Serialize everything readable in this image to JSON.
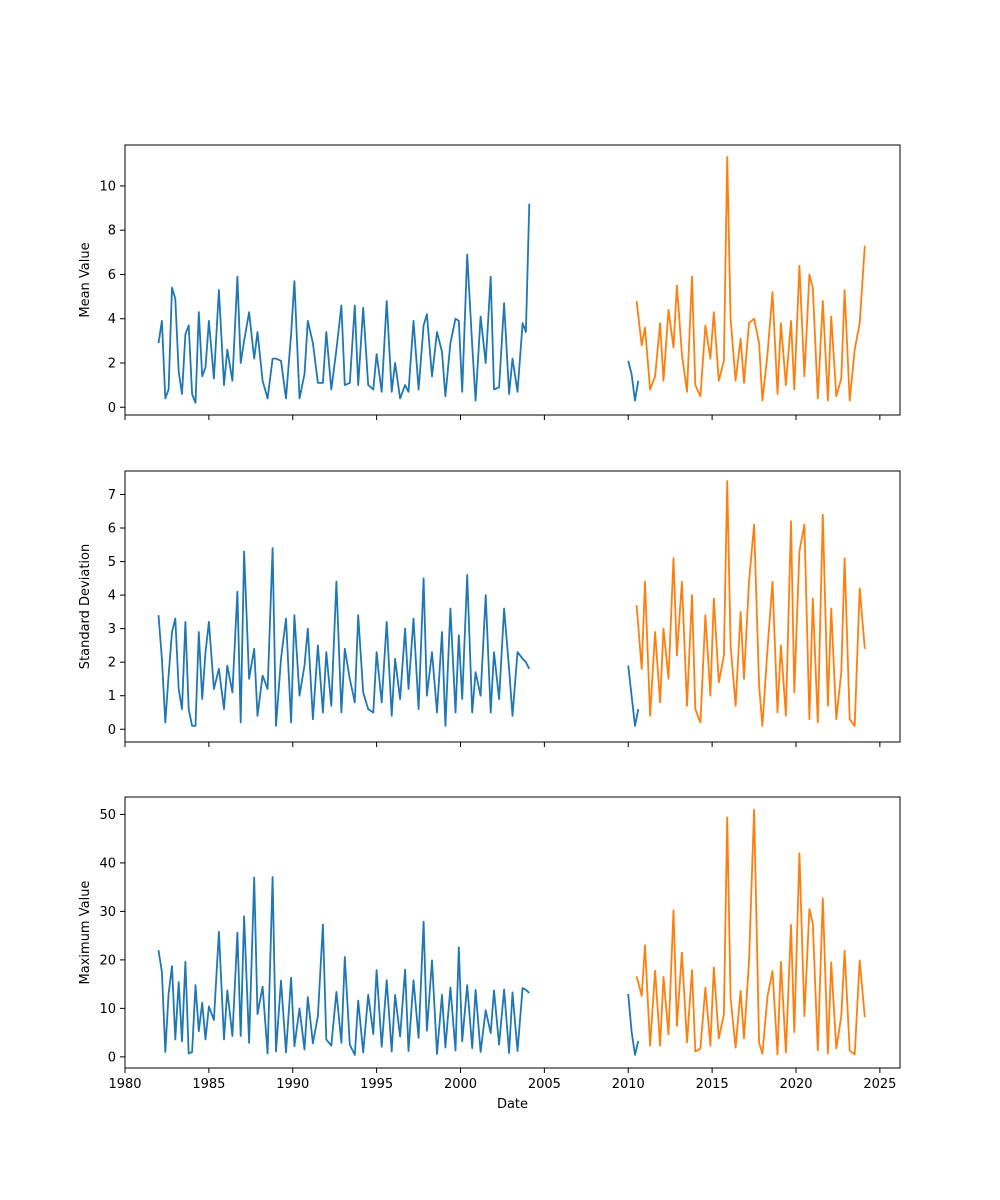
{
  "chart_data": [
    {
      "type": "line",
      "ylabel": "Mean Value",
      "xlabel": "",
      "xlim": [
        1980.0,
        2026.2
      ],
      "ylim": [
        -0.35,
        11.85
      ],
      "xticks": [
        1980,
        1985,
        1990,
        1995,
        2000,
        2005,
        2010,
        2015,
        2020,
        2025
      ],
      "yticks": [
        0,
        2,
        4,
        6,
        8,
        10
      ],
      "show_x_tick_labels": false,
      "series": [
        {
          "color": "#1f77b4",
          "x": [
            1982.0,
            1982.2,
            1982.4,
            1982.6,
            1982.8,
            1983.0,
            1983.2,
            1983.4,
            1983.6,
            1983.8,
            1984.0,
            1984.2,
            1984.4,
            1984.6,
            1984.8,
            1985.0,
            1985.3,
            1985.6,
            1985.9,
            1986.1,
            1986.4,
            1986.7,
            1986.9,
            1987.1,
            1987.4,
            1987.7,
            1987.9,
            1988.2,
            1988.5,
            1988.8,
            1989.0,
            1989.3,
            1989.6,
            1989.9,
            1990.1,
            1990.4,
            1990.7,
            1990.9,
            1991.2,
            1991.5,
            1991.8,
            1992.0,
            1992.3,
            1992.6,
            1992.9,
            1993.1,
            1993.4,
            1993.7,
            1993.9,
            1994.2,
            1994.5,
            1994.8,
            1995.0,
            1995.3,
            1995.6,
            1995.9,
            1996.1,
            1996.4,
            1996.7,
            1996.9,
            1997.2,
            1997.5,
            1997.8,
            1998.0,
            1998.3,
            1998.6,
            1998.9,
            1999.1,
            1999.4,
            1999.7,
            1999.9,
            2000.1,
            2000.4,
            2000.7,
            2000.9,
            2001.2,
            2001.5,
            2001.8,
            2002.0,
            2002.3,
            2002.6,
            2002.9,
            2003.1,
            2003.4,
            2003.7,
            2003.9,
            2004.1
          ],
          "y": [
            2.9,
            3.9,
            0.4,
            0.8,
            5.4,
            4.9,
            1.6,
            0.6,
            3.3,
            3.7,
            0.6,
            0.2,
            4.3,
            1.4,
            1.8,
            3.9,
            1.3,
            5.3,
            1.0,
            2.6,
            1.2,
            5.9,
            2.0,
            3.0,
            4.3,
            2.2,
            3.4,
            1.2,
            0.4,
            2.2,
            2.2,
            2.1,
            0.4,
            3.3,
            5.7,
            0.4,
            1.5,
            3.9,
            2.9,
            1.1,
            1.1,
            3.4,
            0.8,
            2.6,
            4.6,
            1.0,
            1.1,
            4.6,
            1.0,
            4.5,
            1.0,
            0.8,
            2.4,
            0.7,
            4.8,
            0.7,
            2.0,
            0.4,
            1.0,
            0.7,
            3.9,
            0.8,
            3.7,
            4.2,
            1.4,
            3.4,
            2.5,
            0.5,
            2.9,
            4.0,
            3.9,
            0.7,
            6.9,
            2.8,
            0.3,
            4.1,
            2.0,
            5.9,
            0.8,
            0.9,
            4.7,
            0.6,
            2.2,
            0.7,
            3.8,
            3.4,
            9.2
          ]
        },
        {
          "color": "#1f77b4",
          "x": [
            2010.0,
            2010.2,
            2010.4,
            2010.6
          ],
          "y": [
            2.1,
            1.5,
            0.3,
            1.2
          ]
        },
        {
          "color": "#ff7f0e",
          "x": [
            2010.5,
            2010.8,
            2011.0,
            2011.3,
            2011.6,
            2011.9,
            2012.1,
            2012.4,
            2012.7,
            2012.9,
            2013.2,
            2013.5,
            2013.8,
            2014.0,
            2014.3,
            2014.6,
            2014.9,
            2015.1,
            2015.4,
            2015.7,
            2015.9,
            2016.1,
            2016.4,
            2016.7,
            2016.9,
            2017.2,
            2017.5,
            2017.8,
            2018.0,
            2018.3,
            2018.6,
            2018.9,
            2019.1,
            2019.4,
            2019.7,
            2019.9,
            2020.2,
            2020.5,
            2020.8,
            2021.0,
            2021.3,
            2021.6,
            2021.9,
            2022.1,
            2022.4,
            2022.7,
            2022.9,
            2023.2,
            2023.5,
            2023.8,
            2024.1
          ],
          "y": [
            4.8,
            2.8,
            3.6,
            0.8,
            1.4,
            3.8,
            1.2,
            4.4,
            2.7,
            5.5,
            2.4,
            0.7,
            5.9,
            1.0,
            0.5,
            3.7,
            2.2,
            4.3,
            1.2,
            2.1,
            11.3,
            4.0,
            1.2,
            3.1,
            1.1,
            3.8,
            4.0,
            2.9,
            0.3,
            2.4,
            5.2,
            0.6,
            3.8,
            1.0,
            3.9,
            0.8,
            6.4,
            1.4,
            6.0,
            5.4,
            0.4,
            4.8,
            0.3,
            4.1,
            0.5,
            1.3,
            5.3,
            0.3,
            2.6,
            3.8,
            7.3
          ]
        }
      ]
    },
    {
      "type": "line",
      "ylabel": "Standard Deviation",
      "xlabel": "",
      "xlim": [
        1980.0,
        2026.2
      ],
      "ylim": [
        -0.38,
        7.7
      ],
      "xticks": [
        1980,
        1985,
        1990,
        1995,
        2000,
        2005,
        2010,
        2015,
        2020,
        2025
      ],
      "yticks": [
        0,
        1,
        2,
        3,
        4,
        5,
        6,
        7
      ],
      "show_x_tick_labels": false,
      "series": [
        {
          "color": "#1f77b4",
          "x": [
            1982.0,
            1982.2,
            1982.4,
            1982.6,
            1982.8,
            1983.0,
            1983.2,
            1983.4,
            1983.6,
            1983.8,
            1984.0,
            1984.2,
            1984.4,
            1984.6,
            1984.8,
            1985.0,
            1985.3,
            1985.6,
            1985.9,
            1986.1,
            1986.4,
            1986.7,
            1986.9,
            1987.1,
            1987.4,
            1987.7,
            1987.9,
            1988.2,
            1988.5,
            1988.8,
            1989.0,
            1989.3,
            1989.6,
            1989.9,
            1990.1,
            1990.4,
            1990.7,
            1990.9,
            1991.2,
            1991.5,
            1991.8,
            1992.0,
            1992.3,
            1992.6,
            1992.9,
            1993.1,
            1993.4,
            1993.7,
            1993.9,
            1994.2,
            1994.5,
            1994.8,
            1995.0,
            1995.3,
            1995.6,
            1995.9,
            1996.1,
            1996.4,
            1996.7,
            1996.9,
            1997.2,
            1997.5,
            1997.8,
            1998.0,
            1998.3,
            1998.6,
            1998.9,
            1999.1,
            1999.4,
            1999.7,
            1999.9,
            2000.1,
            2000.4,
            2000.7,
            2000.9,
            2001.2,
            2001.5,
            2001.8,
            2002.0,
            2002.3,
            2002.6,
            2002.9,
            2003.1,
            2003.4,
            2003.7,
            2003.9,
            2004.1
          ],
          "y": [
            3.4,
            2.1,
            0.2,
            1.6,
            2.9,
            3.3,
            1.2,
            0.6,
            3.2,
            0.6,
            0.1,
            0.1,
            2.9,
            0.9,
            2.3,
            3.2,
            1.2,
            1.8,
            0.6,
            1.9,
            1.1,
            4.1,
            0.2,
            5.3,
            1.5,
            2.4,
            0.4,
            1.6,
            1.2,
            5.4,
            0.1,
            2.1,
            3.3,
            0.2,
            3.4,
            1.0,
            1.9,
            3.0,
            0.3,
            2.5,
            0.5,
            2.3,
            0.7,
            4.4,
            0.5,
            2.4,
            1.5,
            0.8,
            3.4,
            1.1,
            0.6,
            0.5,
            2.3,
            0.8,
            3.2,
            0.4,
            2.1,
            0.9,
            3.0,
            1.2,
            3.3,
            0.6,
            4.5,
            1.0,
            2.3,
            0.5,
            2.9,
            0.1,
            3.6,
            0.5,
            2.8,
            0.9,
            4.6,
            0.5,
            1.7,
            1.0,
            4.0,
            0.5,
            2.3,
            0.9,
            3.6,
            1.8,
            0.4,
            2.3,
            2.1,
            2.0,
            1.8
          ]
        },
        {
          "color": "#1f77b4",
          "x": [
            2010.0,
            2010.2,
            2010.4,
            2010.6
          ],
          "y": [
            1.9,
            1.0,
            0.1,
            0.6
          ]
        },
        {
          "color": "#ff7f0e",
          "x": [
            2010.5,
            2010.8,
            2011.0,
            2011.3,
            2011.6,
            2011.9,
            2012.1,
            2012.4,
            2012.7,
            2012.9,
            2013.2,
            2013.5,
            2013.8,
            2014.0,
            2014.3,
            2014.6,
            2014.9,
            2015.1,
            2015.4,
            2015.7,
            2015.9,
            2016.1,
            2016.4,
            2016.7,
            2016.9,
            2017.2,
            2017.5,
            2017.8,
            2018.0,
            2018.3,
            2018.6,
            2018.9,
            2019.1,
            2019.4,
            2019.7,
            2019.9,
            2020.2,
            2020.5,
            2020.8,
            2021.0,
            2021.3,
            2021.6,
            2021.9,
            2022.1,
            2022.4,
            2022.7,
            2022.9,
            2023.2,
            2023.5,
            2023.8,
            2024.1
          ],
          "y": [
            3.7,
            1.8,
            4.4,
            0.4,
            2.9,
            0.8,
            3.0,
            1.5,
            5.1,
            2.2,
            4.4,
            0.7,
            4.0,
            0.6,
            0.2,
            3.4,
            1.0,
            3.9,
            1.4,
            2.2,
            7.4,
            2.5,
            0.7,
            3.5,
            1.5,
            4.4,
            6.1,
            1.3,
            0.1,
            2.4,
            4.4,
            0.5,
            2.5,
            0.4,
            6.2,
            1.1,
            5.3,
            6.1,
            0.3,
            3.9,
            0.2,
            6.4,
            0.7,
            3.6,
            0.3,
            1.7,
            5.1,
            0.3,
            0.1,
            4.2,
            2.4
          ]
        }
      ]
    },
    {
      "type": "line",
      "ylabel": "Maximum Value",
      "xlabel": "Date",
      "xlim": [
        1980.0,
        2026.2
      ],
      "ylim": [
        -2.3,
        53.6
      ],
      "xticks": [
        1980,
        1985,
        1990,
        1995,
        2000,
        2005,
        2010,
        2015,
        2020,
        2025
      ],
      "yticks": [
        0,
        10,
        20,
        30,
        40,
        50
      ],
      "show_x_tick_labels": true,
      "series": [
        {
          "color": "#1f77b4",
          "x": [
            1982.0,
            1982.2,
            1982.4,
            1982.6,
            1982.8,
            1983.0,
            1983.2,
            1983.4,
            1983.6,
            1983.8,
            1984.0,
            1984.2,
            1984.4,
            1984.6,
            1984.8,
            1985.0,
            1985.3,
            1985.6,
            1985.9,
            1986.1,
            1986.4,
            1986.7,
            1986.9,
            1987.1,
            1987.4,
            1987.7,
            1987.9,
            1988.2,
            1988.5,
            1988.8,
            1989.0,
            1989.3,
            1989.6,
            1989.9,
            1990.1,
            1990.4,
            1990.7,
            1990.9,
            1991.2,
            1991.5,
            1991.8,
            1992.0,
            1992.3,
            1992.6,
            1992.9,
            1993.1,
            1993.4,
            1993.7,
            1993.9,
            1994.2,
            1994.5,
            1994.8,
            1995.0,
            1995.3,
            1995.6,
            1995.9,
            1996.1,
            1996.4,
            1996.7,
            1996.9,
            1997.2,
            1997.5,
            1997.8,
            1998.0,
            1998.3,
            1998.6,
            1998.9,
            1999.1,
            1999.4,
            1999.7,
            1999.9,
            2000.1,
            2000.4,
            2000.7,
            2000.9,
            2001.2,
            2001.5,
            2001.8,
            2002.0,
            2002.3,
            2002.6,
            2002.9,
            2003.1,
            2003.4,
            2003.7,
            2003.9,
            2004.1
          ],
          "y": [
            22.0,
            17.5,
            1.0,
            13.0,
            18.7,
            3.6,
            15.4,
            3.2,
            19.6,
            0.7,
            1.0,
            14.8,
            5.3,
            11.2,
            3.6,
            10.4,
            7.6,
            25.8,
            3.6,
            13.7,
            4.3,
            25.6,
            4.3,
            29.0,
            2.9,
            37.0,
            8.8,
            14.5,
            0.7,
            37.1,
            1.1,
            15.7,
            0.9,
            16.3,
            2.2,
            10.0,
            1.5,
            12.3,
            2.8,
            8.4,
            27.3,
            3.6,
            2.3,
            13.4,
            2.9,
            20.6,
            2.5,
            0.4,
            11.6,
            0.9,
            12.8,
            4.7,
            17.9,
            2.1,
            15.8,
            1.1,
            12.8,
            4.2,
            18.0,
            1.2,
            15.8,
            3.9,
            27.9,
            5.4,
            19.9,
            0.6,
            12.8,
            1.9,
            14.3,
            1.3,
            22.6,
            3.2,
            14.8,
            1.8,
            13.8,
            1.0,
            9.6,
            4.9,
            13.7,
            2.5,
            13.9,
            0.8,
            13.3,
            1.2,
            14.2,
            13.8,
            13.2
          ]
        },
        {
          "color": "#1f77b4",
          "x": [
            2010.0,
            2010.2,
            2010.4,
            2010.6
          ],
          "y": [
            13.0,
            5.2,
            0.4,
            3.3
          ]
        },
        {
          "color": "#ff7f0e",
          "x": [
            2010.5,
            2010.8,
            2011.0,
            2011.3,
            2011.6,
            2011.9,
            2012.1,
            2012.4,
            2012.7,
            2012.9,
            2013.2,
            2013.5,
            2013.8,
            2014.0,
            2014.3,
            2014.6,
            2014.9,
            2015.1,
            2015.4,
            2015.7,
            2015.9,
            2016.1,
            2016.4,
            2016.7,
            2016.9,
            2017.2,
            2017.5,
            2017.8,
            2018.0,
            2018.3,
            2018.6,
            2018.9,
            2019.1,
            2019.4,
            2019.7,
            2019.9,
            2020.2,
            2020.5,
            2020.8,
            2021.0,
            2021.3,
            2021.6,
            2021.9,
            2022.1,
            2022.4,
            2022.7,
            2022.9,
            2023.2,
            2023.5,
            2023.8,
            2024.1
          ],
          "y": [
            16.6,
            12.6,
            23.0,
            2.3,
            17.8,
            2.3,
            16.5,
            4.6,
            30.2,
            6.4,
            21.5,
            3.0,
            17.9,
            1.1,
            1.7,
            14.3,
            2.3,
            18.4,
            3.8,
            8.8,
            49.4,
            12.1,
            1.9,
            13.6,
            3.8,
            19.6,
            51.0,
            2.9,
            0.6,
            12.5,
            17.7,
            0.5,
            19.6,
            0.9,
            27.2,
            5.1,
            42.0,
            8.4,
            30.5,
            27.5,
            1.3,
            32.7,
            0.7,
            19.5,
            1.7,
            8.4,
            21.9,
            1.3,
            0.5,
            19.9,
            8.2
          ]
        }
      ]
    }
  ]
}
